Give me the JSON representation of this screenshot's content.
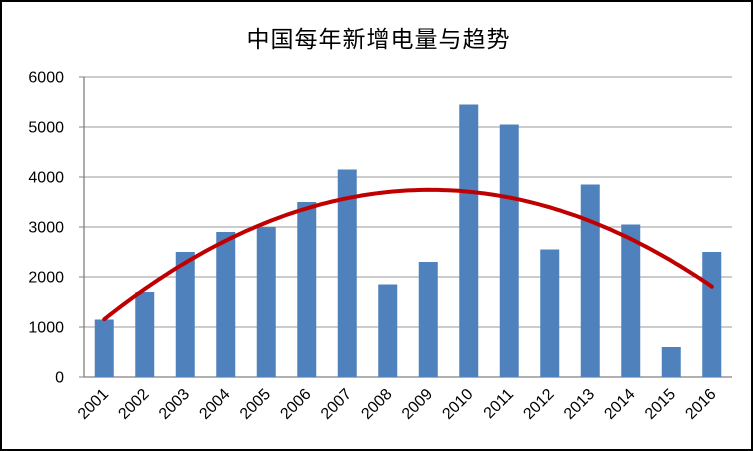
{
  "window": {
    "background_color": "#FFFFFF",
    "border_color": "#000000"
  },
  "chart_data": {
    "type": "bar",
    "title": "中国每年新增电量与趋势",
    "xlabel": "",
    "ylabel": "",
    "categories": [
      "2001",
      "2002",
      "2003",
      "2004",
      "2005",
      "2006",
      "2007",
      "2008",
      "2009",
      "2010",
      "2011",
      "2012",
      "2013",
      "2014",
      "2015",
      "2016"
    ],
    "values": [
      1150,
      1700,
      2500,
      2900,
      3000,
      3500,
      4150,
      1850,
      2300,
      5450,
      5050,
      2550,
      3850,
      3050,
      600,
      2500
    ],
    "ylim": [
      0,
      6000
    ],
    "yticks": [
      0,
      1000,
      2000,
      3000,
      4000,
      5000,
      6000
    ],
    "grid": true,
    "legend_position": "none",
    "bar_color": "#4F81BD",
    "gridline_color": "#9A9A9A",
    "axis_color": "#808080",
    "tick_label_color": "#000000",
    "x_tick_rotation_deg": -45,
    "trendline": {
      "name": "poly2-trend",
      "type": "polynomial",
      "order": 2,
      "color": "#C00000",
      "stroke_width": 4
    }
  }
}
